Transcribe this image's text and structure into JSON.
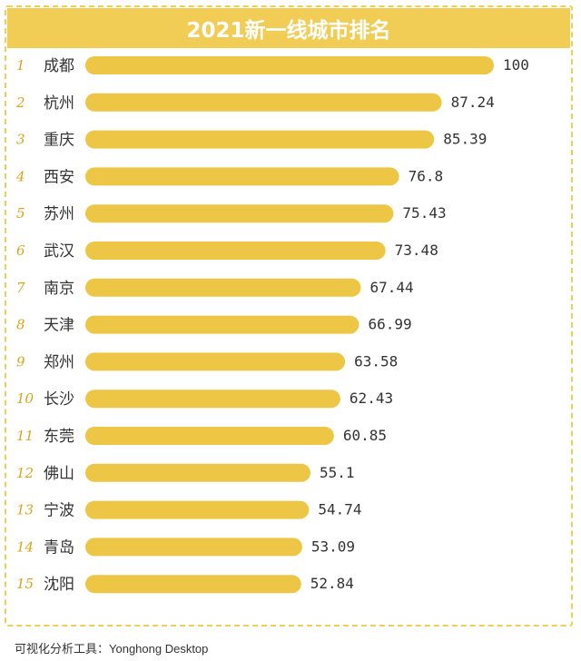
{
  "colors": {
    "accent": "#f1cd55",
    "bar": "#eec645",
    "rank": "#d8a51a",
    "title_text": "#ffffff"
  },
  "footer": "可视化分析工具：Yonghong Desktop",
  "chart_data": {
    "type": "bar",
    "orientation": "horizontal",
    "title": "2021新一线城市排名",
    "ranks": [
      "1",
      "2",
      "3",
      "4",
      "5",
      "6",
      "7",
      "8",
      "9",
      "10",
      "11",
      "12",
      "13",
      "14",
      "15"
    ],
    "categories": [
      "成都",
      "杭州",
      "重庆",
      "西安",
      "苏州",
      "武汉",
      "南京",
      "天津",
      "郑州",
      "长沙",
      "东莞",
      "佛山",
      "宁波",
      "青岛",
      "沈阳"
    ],
    "values": [
      100,
      87.24,
      85.39,
      76.8,
      75.43,
      73.48,
      67.44,
      66.99,
      63.58,
      62.43,
      60.85,
      55.1,
      54.74,
      53.09,
      52.84
    ],
    "value_labels": [
      "100",
      "87.24",
      "85.39",
      "76.8",
      "75.43",
      "73.48",
      "67.44",
      "66.99",
      "63.58",
      "62.43",
      "60.85",
      "55.1",
      "54.74",
      "53.09",
      "52.84"
    ],
    "xlim": [
      0,
      100
    ],
    "grid": false,
    "legend": "none"
  }
}
